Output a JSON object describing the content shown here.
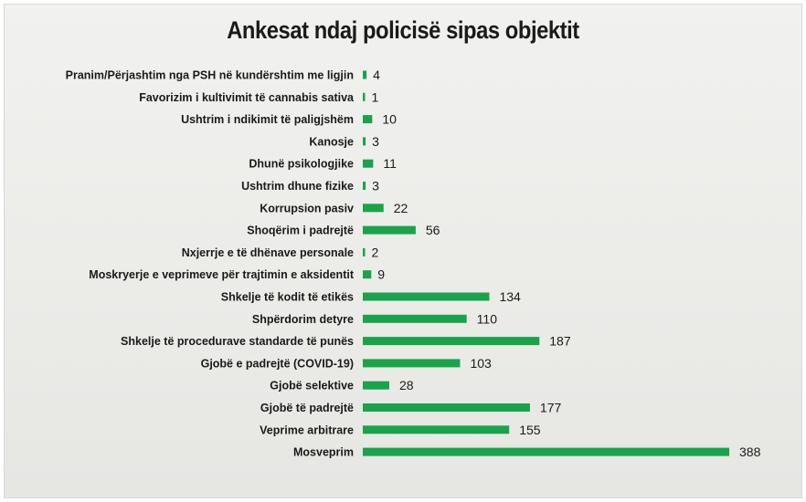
{
  "chart_data": {
    "type": "bar",
    "orientation": "horizontal",
    "title": "Ankesat ndaj policisë sipas objektit",
    "xlabel": "",
    "ylabel": "",
    "grid": false,
    "bar_color": "#1aa34a",
    "categories": [
      "Pranim/Përjashtim nga PSH në kundërshtim me ligjin",
      "Favorizim i kultivimit të cannabis sativa",
      "Ushtrim i ndikimit të paligjshëm",
      "Kanosje",
      "Dhunë psikologjike",
      "Ushtrim dhune fizike",
      "Korrupsion pasiv",
      "Shoqërim i padrejtë",
      "Nxjerrje e të dhënave personale",
      "Moskryerje e veprimeve për trajtimin e aksidentit",
      "Shkelje të kodit të etikës",
      "Shpërdorim detyre",
      "Shkelje të procedurave standarde të punës",
      "Gjobë e padrejtë (COVID-19)",
      "Gjobë selektive",
      "Gjobë të padrejtë",
      "Veprime arbitrare",
      "Mosveprim"
    ],
    "values": [
      4,
      1,
      10,
      3,
      11,
      3,
      22,
      56,
      2,
      9,
      134,
      110,
      187,
      103,
      28,
      177,
      155,
      388
    ],
    "xlim": [
      0,
      388
    ]
  }
}
